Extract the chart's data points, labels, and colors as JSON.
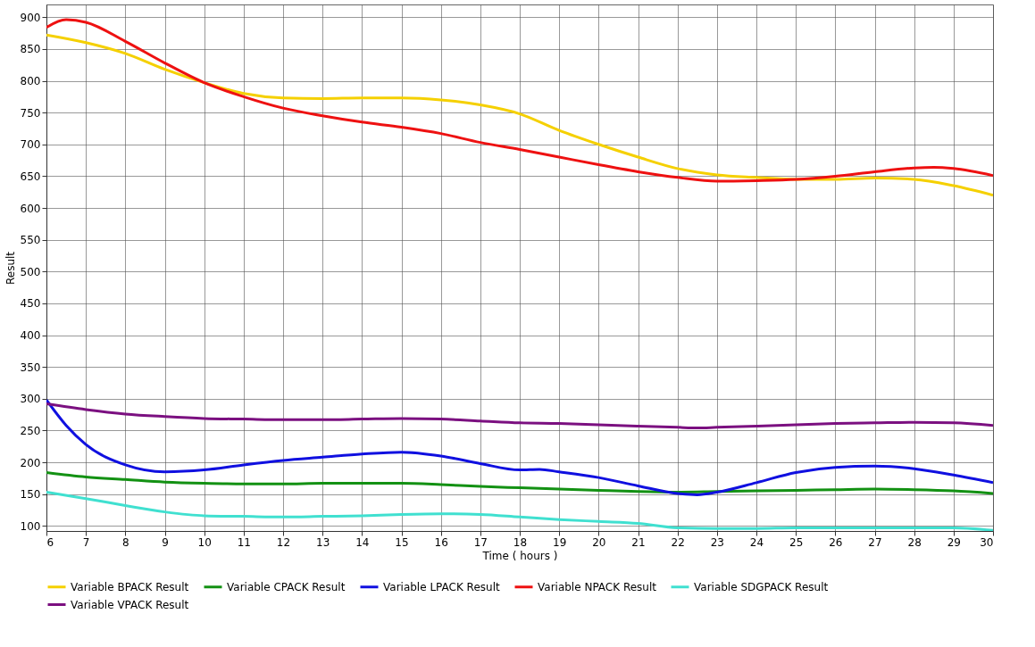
{
  "chart_data": {
    "type": "line",
    "xlabel": "Time ( hours )",
    "ylabel": "Result",
    "xlim": [
      6,
      30
    ],
    "xticks": [
      6,
      7,
      8,
      9,
      10,
      11,
      12,
      13,
      14,
      15,
      16,
      17,
      18,
      19,
      20,
      21,
      22,
      23,
      24,
      25,
      26,
      27,
      28,
      29,
      30
    ],
    "ylim": [
      92,
      920
    ],
    "yticks": [
      100,
      150,
      200,
      250,
      300,
      350,
      400,
      450,
      500,
      550,
      600,
      650,
      700,
      750,
      800,
      850,
      900
    ],
    "grid": true,
    "legend": "bottom",
    "marker": "none",
    "line_style": "solid",
    "series": [
      {
        "name": "Variable BPACK Result",
        "color": "#f5d000",
        "x": [
          6,
          7,
          8,
          9,
          10,
          11,
          12,
          13,
          14,
          15,
          16,
          17,
          18,
          19,
          20,
          21,
          22,
          23,
          24,
          25,
          26,
          27,
          28,
          29,
          30
        ],
        "values": [
          872,
          860,
          843,
          818,
          797,
          780,
          773,
          772,
          773,
          773,
          770,
          762,
          748,
          722,
          700,
          680,
          662,
          652,
          648,
          645,
          645,
          647,
          645,
          635,
          620
        ]
      },
      {
        "name": "Variable CPACK Result",
        "color": "#139113",
        "x": [
          6,
          7,
          8,
          9,
          10,
          11,
          12,
          13,
          14,
          15,
          16,
          17,
          18,
          19,
          20,
          21,
          22,
          23,
          24,
          25,
          26,
          27,
          28,
          29,
          30
        ],
        "values": [
          184,
          177,
          173,
          169,
          167,
          166,
          166,
          167,
          167,
          167,
          165,
          162,
          160,
          158,
          156,
          154,
          153,
          154,
          155,
          156,
          157,
          158,
          157,
          155,
          151
        ]
      },
      {
        "name": "Variable LPACK Result",
        "color": "#1010e0",
        "x": [
          6,
          6.5,
          7,
          8,
          9,
          10,
          11,
          12,
          13,
          14,
          15,
          16,
          17,
          18,
          18.5,
          19,
          20,
          21,
          22,
          22.5,
          23,
          24,
          25,
          26,
          27,
          28,
          29,
          30
        ],
        "values": [
          298,
          258,
          228,
          196,
          185,
          188,
          196,
          203,
          208,
          213,
          216,
          210,
          198,
          188,
          189,
          185,
          176,
          163,
          151,
          149,
          153,
          168,
          184,
          192,
          194,
          190,
          180,
          168
        ]
      },
      {
        "name": "Variable NPACK Result",
        "color": "#ee1111",
        "x": [
          6,
          6.5,
          7,
          8,
          9,
          10,
          11,
          12,
          13,
          14,
          15,
          16,
          17,
          18,
          19,
          20,
          21,
          22,
          23,
          24,
          25,
          26,
          27,
          28,
          28.5,
          29,
          30
        ],
        "values": [
          884,
          896,
          892,
          862,
          828,
          797,
          775,
          757,
          745,
          735,
          727,
          717,
          703,
          692,
          680,
          668,
          657,
          648,
          642,
          643,
          645,
          650,
          657,
          663,
          664,
          662,
          651
        ]
      },
      {
        "name": "Variable SDGPACK Result",
        "color": "#40e0d0",
        "x": [
          6,
          7,
          8,
          9,
          10,
          11,
          12,
          13,
          14,
          15,
          16,
          17,
          18,
          19,
          20,
          21,
          22,
          23,
          24,
          25,
          26,
          27,
          28,
          29,
          30
        ],
        "values": [
          153,
          143,
          132,
          122,
          116,
          115,
          114,
          115,
          116,
          118,
          119,
          118,
          114,
          110,
          107,
          104,
          97,
          96,
          96,
          97,
          97,
          97,
          97,
          97,
          93
        ]
      },
      {
        "name": "Variable VPACK Result",
        "color": "#7b1080",
        "x": [
          6,
          7,
          8,
          9,
          10,
          11,
          12,
          13,
          14,
          15,
          16,
          17,
          18,
          19,
          20,
          21,
          22,
          22.5,
          23,
          24,
          25,
          26,
          27,
          28,
          29,
          30
        ],
        "values": [
          292,
          283,
          276,
          272,
          269,
          268,
          267,
          267,
          268,
          269,
          268,
          265,
          262,
          261,
          259,
          257,
          255,
          254,
          255,
          257,
          259,
          261,
          262,
          263,
          262,
          258
        ]
      }
    ]
  }
}
